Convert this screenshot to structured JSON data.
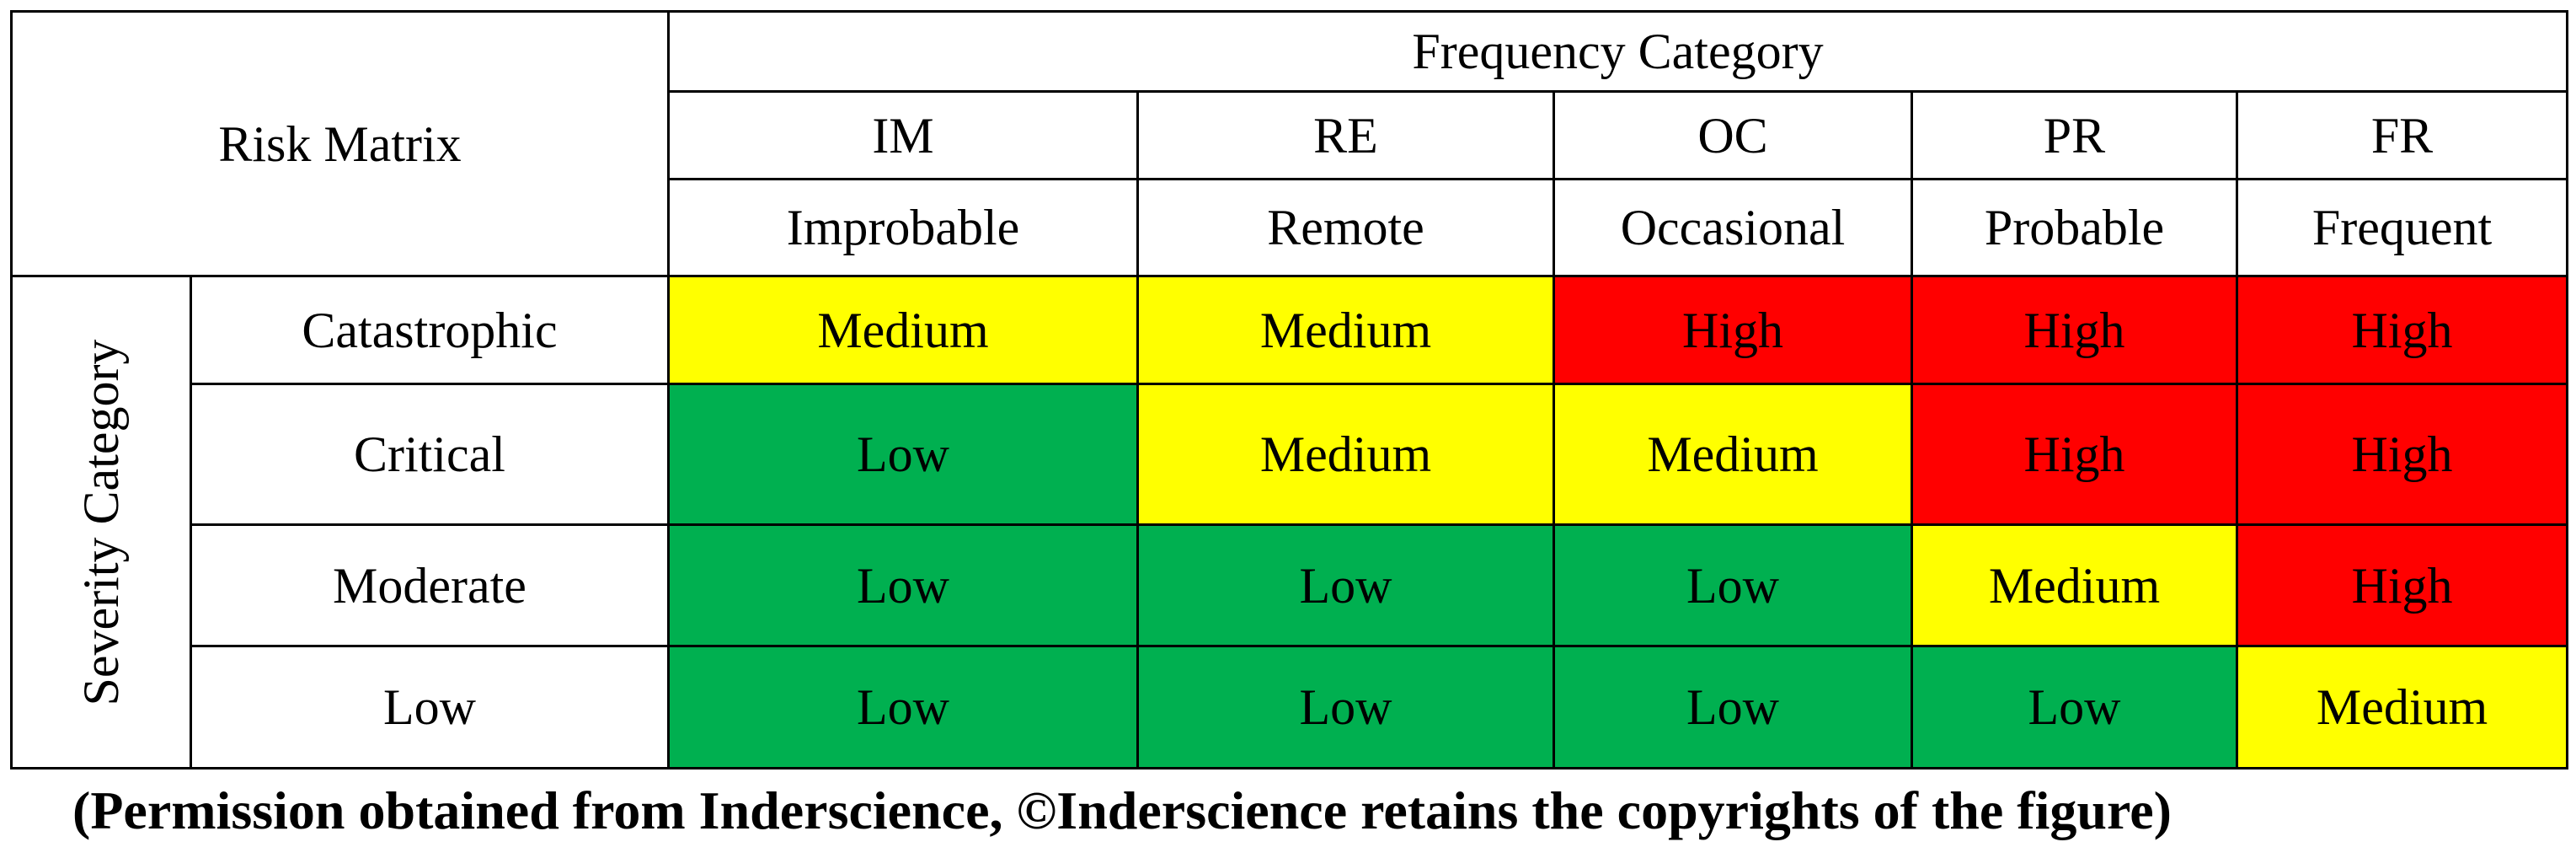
{
  "table_title": "Risk Matrix",
  "frequency_header": "Frequency Category",
  "severity_header": "Severity Category",
  "frequency_columns": [
    {
      "code": "IM",
      "name": "Improbable"
    },
    {
      "code": "RE",
      "name": "Remote"
    },
    {
      "code": "OC",
      "name": "Occasional"
    },
    {
      "code": "PR",
      "name": "Probable"
    },
    {
      "code": "FR",
      "name": "Frequent"
    }
  ],
  "severity_rows": [
    {
      "label": "Catastrophic",
      "cells": [
        "Medium",
        "Medium",
        "High",
        "High",
        "High"
      ]
    },
    {
      "label": "Critical",
      "cells": [
        "Low",
        "Medium",
        "Medium",
        "High",
        "High"
      ]
    },
    {
      "label": "Moderate",
      "cells": [
        "Low",
        "Low",
        "Low",
        "Medium",
        "High"
      ]
    },
    {
      "label": "Low",
      "cells": [
        "Low",
        "Low",
        "Low",
        "Low",
        "Medium"
      ]
    }
  ],
  "level_colors": {
    "High": "#ff0000",
    "Medium": "#ffff00",
    "Low": "#00b050"
  },
  "caption": "(Permission obtained from Inderscience, ©Inderscience retains the copyrights of the figure)"
}
